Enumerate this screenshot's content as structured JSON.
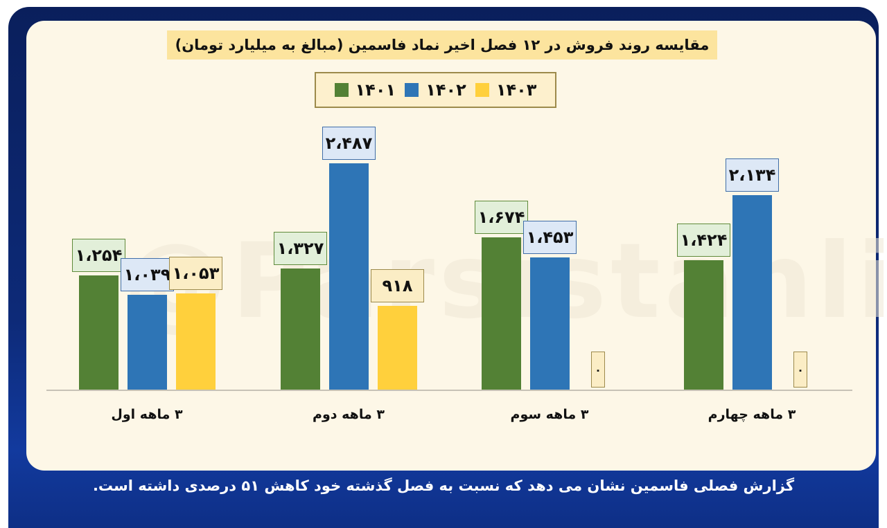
{
  "watermark": "@Parsistahlil",
  "colors": {
    "1401": "#538135",
    "1402": "#2e75b6",
    "1403": "#ffd03c",
    "frame": "#0d2a78",
    "panel": "#fdf7e7",
    "title_bg": "#fce49e"
  },
  "chart_data": {
    "type": "bar",
    "title": "مقایسه روند فروش در ۱۲ فصل اخیر نماد فاسمین (مبالغ به میلیارد تومان)",
    "xlabel": "",
    "ylabel": "",
    "grid": false,
    "legend_position": "top",
    "categories": [
      "۳ ماهه اول",
      "۳ ماهه دوم",
      "۳ ماهه سوم",
      "۳ ماهه چهارم"
    ],
    "series": [
      {
        "name": "۱۴۰۱",
        "values": [
          1254,
          1327,
          1674,
          1424
        ],
        "labels": [
          "۱،۲۵۴",
          "۱،۳۲۷",
          "۱،۶۷۴",
          "۱،۴۲۴"
        ]
      },
      {
        "name": "۱۴۰۲",
        "values": [
          1039,
          2487,
          1453,
          2134
        ],
        "labels": [
          "۱،۰۳۹",
          "۲،۴۸۷",
          "۱،۴۵۳",
          "۲،۱۳۴"
        ]
      },
      {
        "name": "۱۴۰۳",
        "values": [
          1053,
          918,
          0,
          0
        ],
        "labels": [
          "۱،۰۵۳",
          "۹۱۸",
          "۰",
          "۰"
        ]
      }
    ],
    "ylim": [
      0,
      3000
    ]
  },
  "footer": {
    "text": "گزارش فصلی فاسمین نشان می دهد که نسبت به فصل گذشته خود کاهش ۵۱ درصدی داشته است."
  }
}
